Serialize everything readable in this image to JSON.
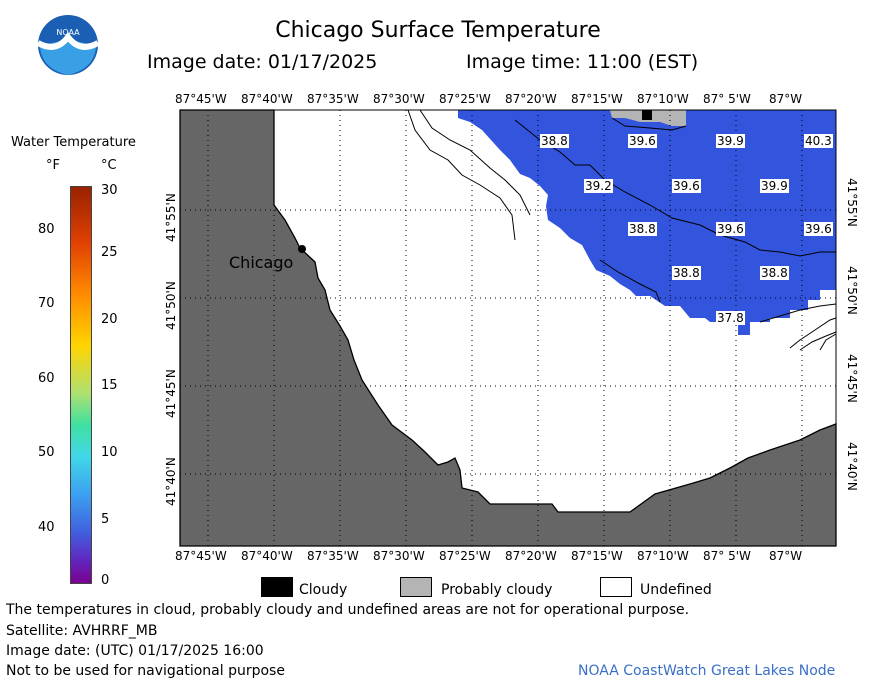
{
  "title": "Chicago Surface Temperature",
  "image_date": "Image date: 01/17/2025",
  "image_time": "Image time: 11:00 (EST)",
  "colors": {
    "land": "#666666",
    "water": "#3355dd",
    "probably_cloudy": "#b4b4b4",
    "cloudy": "#000000",
    "undefined": "#ffffff"
  },
  "colorbar": {
    "title": "Water Temperature",
    "unit_f": "°F",
    "unit_c": "°C",
    "f_ticks": [
      "80",
      "70",
      "60",
      "50",
      "40"
    ],
    "c_ticks": [
      "30",
      "25",
      "20",
      "15",
      "10",
      "5",
      "0"
    ]
  },
  "lon_labels": [
    "87°45'W",
    "87°40'W",
    "87°35'W",
    "87°30'W",
    "87°25'W",
    "87°20'W",
    "87°15'W",
    "87°10'W",
    "87° 5'W",
    "87°W"
  ],
  "lat_labels": [
    "41°55'N",
    "41°50'N",
    "41°45'N",
    "41°40'N"
  ],
  "city": "Chicago",
  "temperatures": [
    "38.8",
    "39.6",
    "39.9",
    "40.3",
    "39.2",
    "39.6",
    "39.9",
    "38.8",
    "39.6",
    "39.6",
    "38.8",
    "38.8",
    "37.8"
  ],
  "legend": {
    "cloudy": "Cloudy",
    "probably_cloudy": "Probably cloudy",
    "undefined": "Undefined"
  },
  "footer": {
    "disclaimer": "The temperatures in cloud, probably cloudy and undefined areas are not for operational purpose.",
    "satellite": "Satellite: AVHRRF_MB",
    "utc_date": "Image date: (UTC) 01/17/2025  16:00",
    "nav": "Not to be used for navigational purpose",
    "credit": "NOAA CoastWatch Great Lakes Node"
  }
}
